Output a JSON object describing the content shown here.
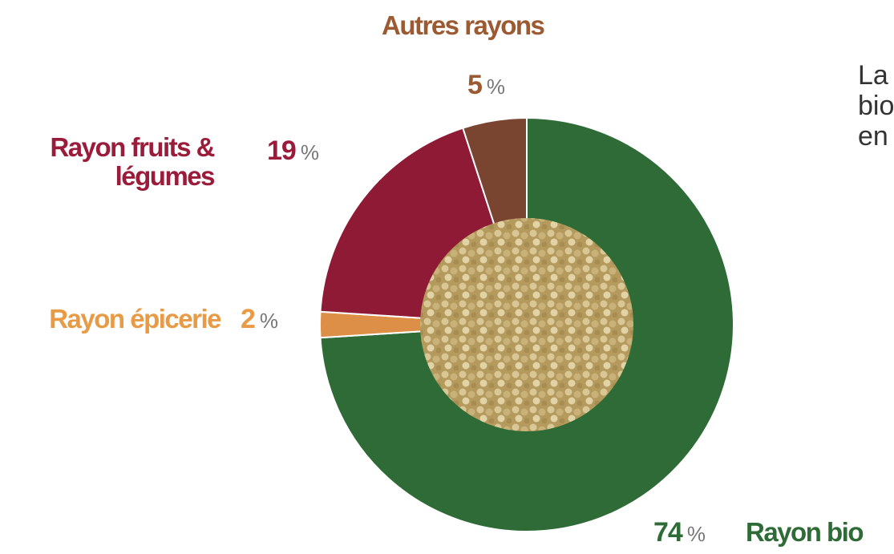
{
  "chart_data": {
    "type": "pie",
    "categories": [
      "Rayon bio",
      "Rayon épicerie",
      "Rayon fruits & légumes",
      "Autres rayons"
    ],
    "values": [
      74,
      2,
      19,
      5
    ],
    "unit": "%",
    "colors": [
      "#2e6b36",
      "#dd8f47",
      "#8e1a36",
      "#7a4530"
    ],
    "label_colors": [
      "#2e6b36",
      "#e89a45",
      "#9b1c3a",
      "#9b5a32"
    ]
  },
  "side_text": [
    "La",
    "bio",
    "en"
  ]
}
